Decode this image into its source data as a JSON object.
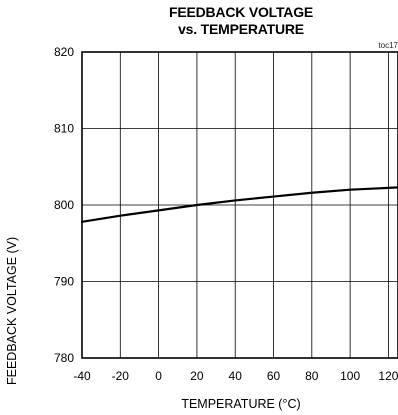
{
  "chart_data": {
    "type": "line",
    "title_line1": "FEEDBACK VOLTAGE",
    "title_line2": "vs. TEMPERATURE",
    "figure_tag": "toc17",
    "xlabel": "TEMPERATURE (°C)",
    "ylabel": "FEEDBACK  VOLTAGE (V)",
    "xlim": [
      -40,
      125
    ],
    "ylim": [
      780,
      820
    ],
    "x_ticks": [
      -40,
      -20,
      0,
      20,
      40,
      60,
      80,
      100,
      120
    ],
    "y_ticks": [
      780,
      790,
      800,
      810,
      820
    ],
    "grid": true,
    "line_color": "#000000",
    "series": [
      {
        "x": [
          -40,
          -20,
          0,
          20,
          40,
          60,
          80,
          100,
          125
        ],
        "y": [
          797.8,
          798.6,
          799.3,
          800.0,
          800.6,
          801.1,
          801.6,
          802.0,
          802.3
        ]
      }
    ]
  }
}
